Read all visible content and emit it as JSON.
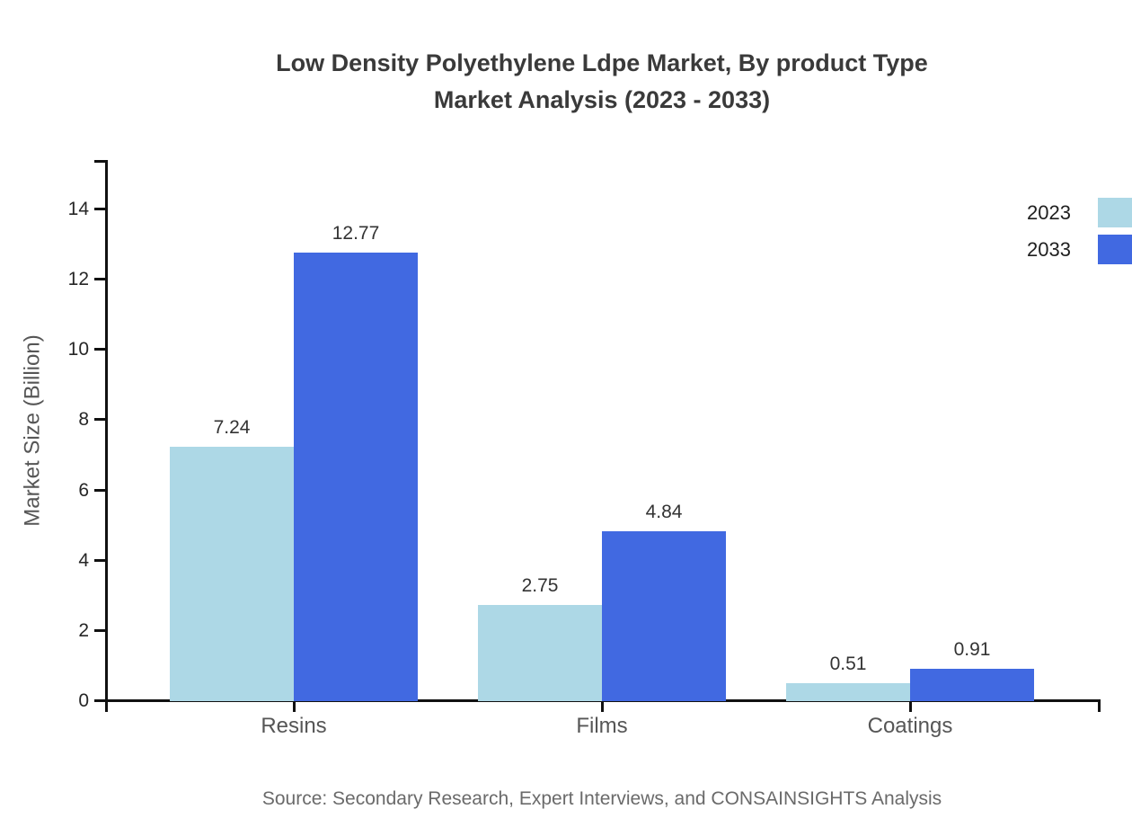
{
  "title": {
    "line1": "Low Density Polyethylene Ldpe Market, By product Type",
    "line2": "Market Analysis (2023 - 2033)"
  },
  "source": "Source: Secondary Research, Expert Interviews, and CONSAINSIGHTS Analysis",
  "chart_data": {
    "type": "bar",
    "categories": [
      "Resins",
      "Films",
      "Coatings"
    ],
    "series": [
      {
        "name": "2023",
        "color": "#ADD8E6",
        "values": [
          7.24,
          2.75,
          0.51
        ]
      },
      {
        "name": "2033",
        "color": "#4169E1",
        "values": [
          12.77,
          4.84,
          0.91
        ]
      }
    ],
    "title": "Low Density Polyethylene Ldpe Market, By product Type Market Analysis (2023 - 2033)",
    "xlabel": "",
    "ylabel": "Market Size (Billion)",
    "yticks": [
      0,
      2,
      4,
      6,
      8,
      10,
      12,
      14
    ],
    "ylim": [
      0,
      15.4
    ],
    "grid": false,
    "legend_position": "top-right",
    "value_labels": true,
    "axis_color": "#111111"
  }
}
